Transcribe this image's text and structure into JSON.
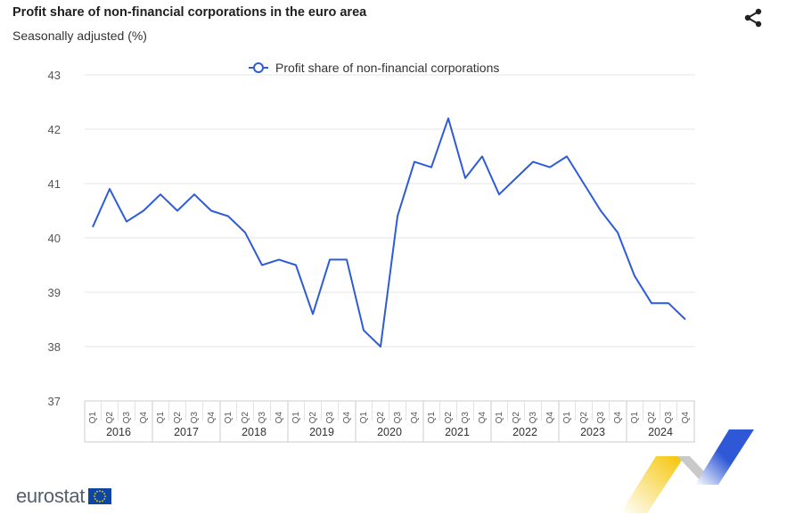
{
  "header": {
    "title": "Profit share of non-financial corporations in the euro area",
    "subtitle": "Seasonally adjusted (%)"
  },
  "share_icon": "share-icon",
  "logo": {
    "text": "eurostat",
    "flag_icon": "eu-flag-icon"
  },
  "colors": {
    "line": "#2e5bd9",
    "grid": "#e6e6e6",
    "text": "#555555"
  },
  "chart_data": {
    "type": "line",
    "title": "Profit share of non-financial corporations in the euro area",
    "subtitle": "Seasonally adjusted (%)",
    "legend": {
      "position": "top-center"
    },
    "ylim": [
      37,
      43
    ],
    "yticks": [
      37,
      38,
      39,
      40,
      41,
      42,
      43
    ],
    "grid": true,
    "years": [
      "2016",
      "2017",
      "2018",
      "2019",
      "2020",
      "2021",
      "2022",
      "2023",
      "2024"
    ],
    "quarters": [
      "Q1",
      "Q2",
      "Q3",
      "Q4"
    ],
    "series": [
      {
        "name": "Profit share of non-financial corporations",
        "values": [
          40.2,
          40.9,
          40.3,
          40.5,
          40.8,
          40.5,
          40.8,
          40.5,
          40.4,
          40.1,
          39.5,
          39.6,
          39.5,
          38.6,
          39.6,
          39.6,
          38.3,
          38.0,
          40.4,
          41.4,
          41.3,
          42.2,
          41.1,
          41.5,
          40.8,
          41.1,
          41.4,
          41.3,
          41.5,
          41.0,
          40.5,
          40.1,
          39.3,
          38.8,
          38.8,
          38.5
        ]
      }
    ]
  }
}
